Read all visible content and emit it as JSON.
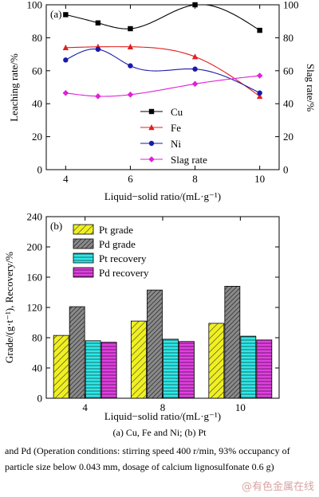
{
  "chart_data": [
    {
      "type": "line",
      "panel_label": "(a)",
      "xlabel": "Liquid−solid ratio/(mL·g⁻¹)",
      "ylabel": "Leaching rate/%",
      "ylabel_right": "Slag rate/%",
      "xlim": [
        3.4,
        10.6
      ],
      "ylim": [
        0,
        100
      ],
      "xticks": [
        "4",
        "6",
        "8",
        "10"
      ],
      "yticks": [
        "0",
        "20",
        "40",
        "60",
        "80",
        "100"
      ],
      "yticks_right": [
        "0",
        "20",
        "40",
        "60",
        "80",
        "100"
      ],
      "x": [
        4,
        5,
        6,
        8,
        10
      ],
      "legend_position": "bottom-right",
      "series": [
        {
          "name": "Cu",
          "values": [
            94,
            89,
            85.5,
            100,
            84.5
          ],
          "color": "#000000",
          "marker": "square"
        },
        {
          "name": "Fe",
          "values": [
            74,
            74.5,
            74.5,
            68.5,
            44.5
          ],
          "color": "#e02020",
          "marker": "triangle"
        },
        {
          "name": "Ni",
          "values": [
            66.5,
            73,
            63,
            61,
            46.5
          ],
          "color": "#1a1aa8",
          "marker": "circle"
        },
        {
          "name": "Slag rate",
          "values": [
            46.5,
            44.5,
            45.5,
            52,
            57
          ],
          "color": "#e020d8",
          "marker": "diamond"
        }
      ]
    },
    {
      "type": "bar",
      "panel_label": "(b)",
      "xlabel": "Liquid−solid ratio/(mL·g⁻¹)",
      "ylabel": "Grade/(g·t⁻¹), Recovery/%",
      "ylim": [
        0,
        240
      ],
      "yticks": [
        "0",
        "40",
        "80",
        "120",
        "160",
        "200",
        "240"
      ],
      "categories": [
        "4",
        "8",
        "10"
      ],
      "legend_position": "top-left",
      "series": [
        {
          "name": "Pt grade",
          "values": [
            83,
            102,
            99
          ],
          "color": "#f0f020",
          "pattern": "hatch-sparse"
        },
        {
          "name": "Pd grade",
          "values": [
            121,
            143,
            148
          ],
          "color": "#7a7a7a",
          "pattern": "hatch-dense"
        },
        {
          "name": "Pt recovery",
          "values": [
            76,
            78,
            82
          ],
          "color": "#30e8e8",
          "pattern": "horizontal"
        },
        {
          "name": "Pd recovery",
          "values": [
            74,
            75,
            77
          ],
          "color": "#e040e0",
          "pattern": "horizontal"
        }
      ]
    }
  ],
  "caption": "(a) Cu, Fe and Ni; (b) Pt",
  "note": "and Pd (Operation conditions: stirring speed 400 r/min, 93% occupancy of particle size below 0.043 mm, dosage of calcium lignosulfonate 0.6 g)",
  "watermark": "@有色金属在线"
}
